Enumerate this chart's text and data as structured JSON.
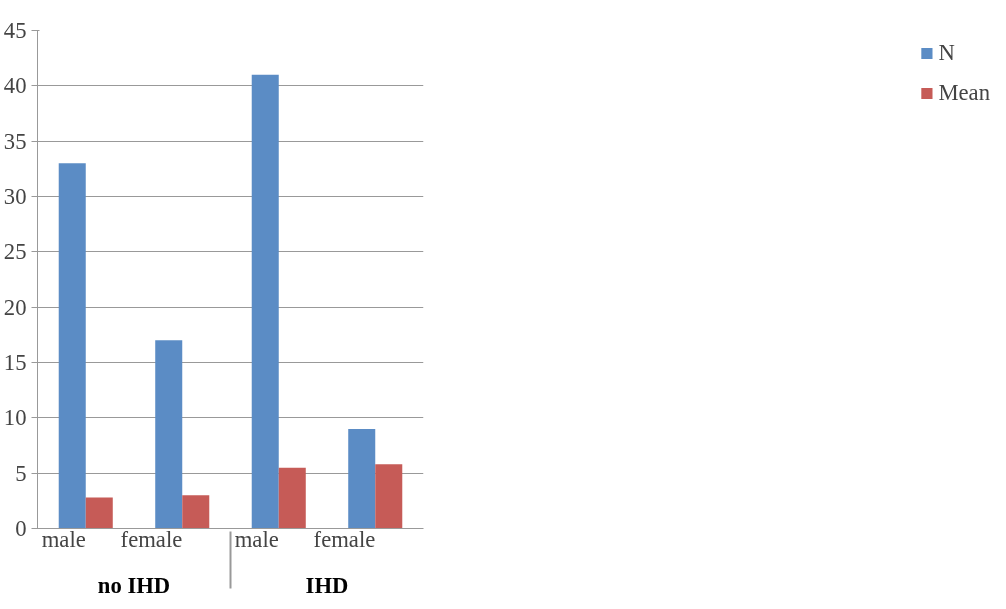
{
  "chart_data": {
    "type": "bar",
    "categories": [
      "male",
      "female",
      "male",
      "female"
    ],
    "annotations": [
      "no IHD",
      "IHD"
    ],
    "series": [
      {
        "name": "N",
        "color": "#5b8cc5",
        "values": [
          33,
          17,
          41,
          9
        ]
      },
      {
        "name": "Mean",
        "color": "#c65b57",
        "values": [
          2.8,
          3.0,
          5.5,
          5.8
        ]
      }
    ],
    "ylim": [
      0,
      45
    ],
    "yticks": [
      0,
      5,
      10,
      15,
      20,
      25,
      30,
      35,
      40,
      45
    ],
    "grid": "y",
    "legend": "right"
  }
}
